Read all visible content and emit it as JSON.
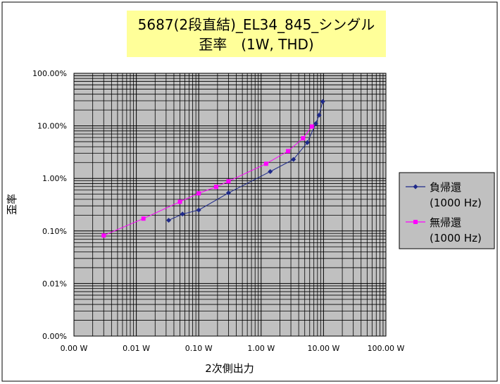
{
  "chart_data": {
    "type": "scatter",
    "title": [
      "5687(2段直結)_EL34_845_シングル",
      "歪率　(1W, THD)"
    ],
    "xlabel": "2次側出力",
    "ylabel": "歪率",
    "x_scale": "log",
    "y_scale": "log",
    "xlim": [
      0.001,
      100
    ],
    "ylim": [
      1e-05,
      1
    ],
    "x_ticks": [
      {
        "value": 0.001,
        "label": "0.00 W"
      },
      {
        "value": 0.01,
        "label": "0.01 W"
      },
      {
        "value": 0.1,
        "label": "0.10 W"
      },
      {
        "value": 1,
        "label": "1.00 W"
      },
      {
        "value": 10,
        "label": "10.00 W"
      },
      {
        "value": 100,
        "label": "100.00 W"
      }
    ],
    "y_ticks": [
      {
        "value": 1e-05,
        "label": "0.00%"
      },
      {
        "value": 0.0001,
        "label": "0.01%"
      },
      {
        "value": 0.001,
        "label": "0.10%"
      },
      {
        "value": 0.01,
        "label": "1.00%"
      },
      {
        "value": 0.1,
        "label": "10.00%"
      },
      {
        "value": 1,
        "label": "100.00%"
      }
    ],
    "grid": true,
    "legend_position": "right",
    "series": [
      {
        "name": "負帰還\n(1000 Hz)",
        "color": "#1f2a8a",
        "marker": "diamond",
        "points": [
          [
            0.033,
            0.0016
          ],
          [
            0.055,
            0.0021
          ],
          [
            0.1,
            0.0025
          ],
          [
            0.3,
            0.0053
          ],
          [
            1.4,
            0.0135
          ],
          [
            3.3,
            0.023
          ],
          [
            5.5,
            0.048
          ],
          [
            7.5,
            0.11
          ],
          [
            8.5,
            0.16
          ],
          [
            9.7,
            0.29
          ]
        ]
      },
      {
        "name": "無帰還\n(1000 Hz)",
        "color": "#ff00ff",
        "marker": "square",
        "points": [
          [
            0.003,
            0.00082
          ],
          [
            0.013,
            0.00172
          ],
          [
            0.05,
            0.0036
          ],
          [
            0.1,
            0.0052
          ],
          [
            0.19,
            0.0069
          ],
          [
            0.3,
            0.0088
          ],
          [
            1.2,
            0.019
          ],
          [
            2.7,
            0.033
          ],
          [
            4.7,
            0.058
          ],
          [
            6.5,
            0.097
          ]
        ]
      }
    ]
  },
  "style": {
    "title_bg": "#ffff99",
    "plot_bg": "#c0c0c0",
    "legend_bg": "#c0c0c0",
    "grid_color": "#000000",
    "frame_color": "#000000"
  }
}
